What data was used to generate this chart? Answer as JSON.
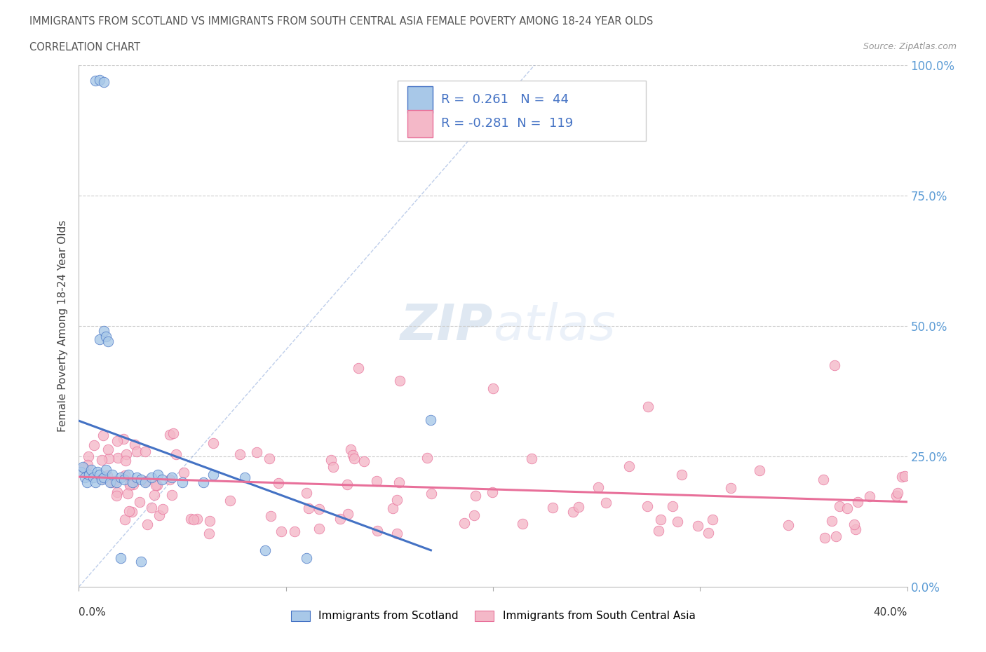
{
  "title_line1": "IMMIGRANTS FROM SCOTLAND VS IMMIGRANTS FROM SOUTH CENTRAL ASIA FEMALE POVERTY AMONG 18-24 YEAR OLDS",
  "title_line2": "CORRELATION CHART",
  "source": "Source: ZipAtlas.com",
  "ylabel": "Female Poverty Among 18-24 Year Olds",
  "legend_label1": "Immigrants from Scotland",
  "legend_label2": "Immigrants from South Central Asia",
  "r1": "0.261",
  "n1": "44",
  "r2": "-0.281",
  "n2": "119",
  "color_scotland": "#a8c8e8",
  "color_scotland_dark": "#4472c4",
  "color_asia": "#f4b8c8",
  "color_asia_dark": "#e8709a",
  "watermark_color": "#c8d8ee",
  "background_color": "#ffffff",
  "xlim": [
    0.0,
    0.4
  ],
  "ylim": [
    0.0,
    1.0
  ],
  "ytick_vals": [
    0.0,
    0.25,
    0.5,
    0.75,
    1.0
  ],
  "ytick_labels": [
    "0.0%",
    "25.0%",
    "50.0%",
    "75.0%",
    "100.0%"
  ],
  "xtick_label_left": "0.0%",
  "xtick_label_right": "40.0%"
}
